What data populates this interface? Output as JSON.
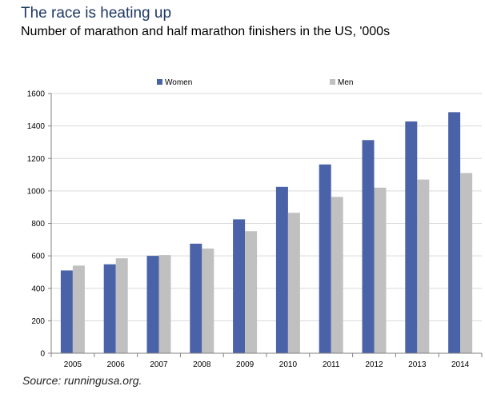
{
  "title": "The race is heating up",
  "subtitle": "Number of marathon and half marathon finishers in the US, '000s",
  "source": "Source:   runningusa.org.",
  "chart_data": {
    "type": "bar",
    "categories": [
      "2005",
      "2006",
      "2007",
      "2008",
      "2009",
      "2010",
      "2011",
      "2012",
      "2013",
      "2014"
    ],
    "series": [
      {
        "name": "Women",
        "color": "#4a62a8",
        "values": [
          510,
          548,
          600,
          675,
          825,
          1025,
          1163,
          1313,
          1428,
          1485
        ]
      },
      {
        "name": "Men",
        "color": "#c0c0c0",
        "values": [
          540,
          585,
          605,
          645,
          752,
          865,
          963,
          1020,
          1070,
          1110
        ]
      }
    ],
    "ylim": [
      0,
      1600
    ],
    "yticks": [
      "0",
      "200",
      "400",
      "600",
      "800",
      "1000",
      "1200",
      "1400",
      "1600"
    ],
    "grid": true,
    "legend": "top"
  }
}
